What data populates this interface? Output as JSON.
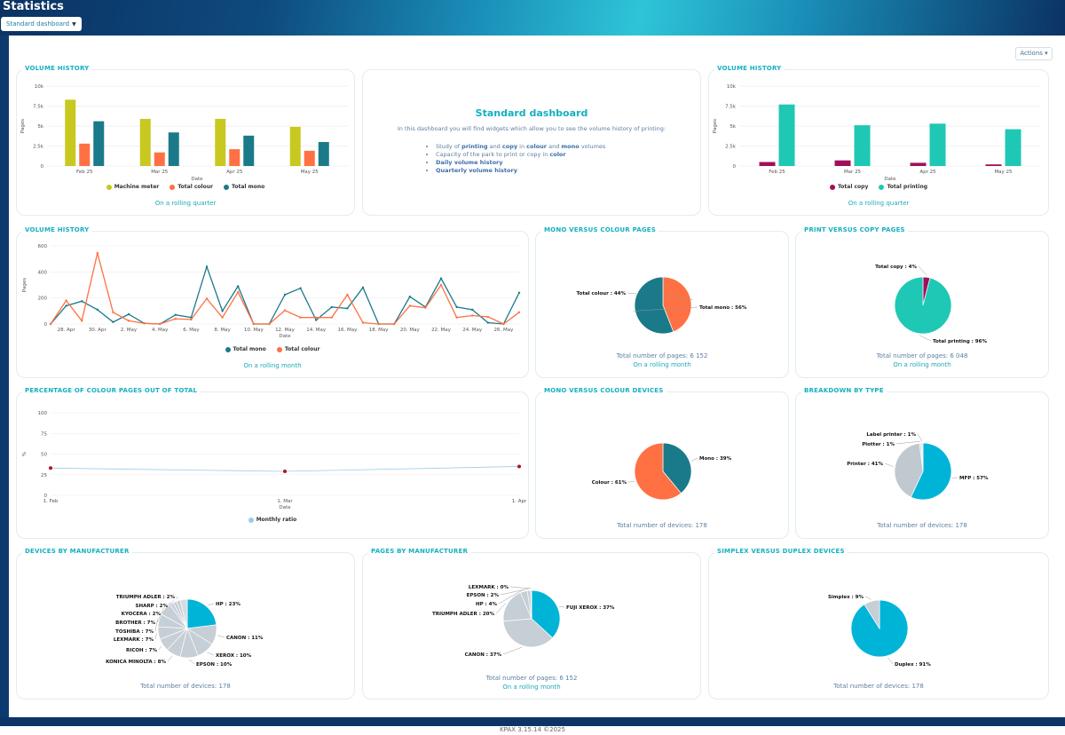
{
  "header": {
    "title": "Statistics",
    "dashboard_select": "Standard dashboard",
    "actions": "Actions"
  },
  "footer": {
    "version": "KPAX 3.15.14 ©2025"
  },
  "intro": {
    "title": "Standard dashboard",
    "text": "In this dashboard you will find widgets which allow you to see the volume history of printing:",
    "items": [
      {
        "pre": "Study of ",
        "b1": "printing",
        "mid": " and ",
        "b2": "copy",
        "mid2": " in ",
        "b3": "colour",
        "mid3": " and ",
        "b4": "mono",
        "post": " volumes"
      },
      {
        "pre": "Capacity of the park to print or copy in ",
        "b1": "color"
      },
      {
        "b1": "Daily volume history"
      },
      {
        "b1": "Quarterly volume history"
      }
    ]
  },
  "cards": {
    "vh1": {
      "title": "VOLUME HISTORY",
      "foot": "On a rolling quarter"
    },
    "vh2": {
      "title": "VOLUME HISTORY",
      "foot": "On a rolling quarter"
    },
    "vh3": {
      "title": "VOLUME HISTORY",
      "foot": "On a rolling month"
    },
    "mvc_pages": {
      "title": "MONO VERSUS COLOUR PAGES",
      "total": "Total number of pages: 6 152",
      "foot": "On a rolling month"
    },
    "pvc_pages": {
      "title": "PRINT VERSUS COPY PAGES",
      "total": "Total number of pages: 6 048",
      "foot": "On a rolling month"
    },
    "pct": {
      "title": "PERCENTAGE OF COLOUR PAGES OUT OF TOTAL"
    },
    "mvc_devices": {
      "title": "MONO VERSUS COLOUR DEVICES",
      "total": "Total number of devices: 178"
    },
    "breakdown": {
      "title": "BREAKDOWN BY TYPE",
      "total": "Total number of devices: 178"
    },
    "dev_manu": {
      "title": "DEVICES BY MANUFACTURER",
      "total": "Total number of devices: 178"
    },
    "pages_manu": {
      "title": "PAGES BY MANUFACTURER",
      "total": "Total number of pages: 6 152",
      "foot": "On a rolling month"
    },
    "simplex": {
      "title": "SIMPLEX VERSUS DUPLEX DEVICES",
      "total": "Total number of devices: 178"
    }
  },
  "chart_data": [
    {
      "id": "vh1",
      "type": "bar",
      "title": "VOLUME HISTORY",
      "categories": [
        "Feb 25",
        "Mar 25",
        "Apr 25",
        "May 25"
      ],
      "series": [
        {
          "name": "Machine meter",
          "color": "#c8c820",
          "values": [
            8300,
            5900,
            5900,
            4900
          ]
        },
        {
          "name": "Total colour",
          "color": "#ff7043",
          "values": [
            2800,
            1700,
            2100,
            1900
          ]
        },
        {
          "name": "Total mono",
          "color": "#1a7a8a",
          "values": [
            5600,
            4200,
            3800,
            3000
          ]
        }
      ],
      "yticks": [
        "0",
        "2.5k",
        "5k",
        "7.5k",
        "10k"
      ],
      "ylim": [
        0,
        10000
      ],
      "xlabel": "Date",
      "ylabel": "Pages"
    },
    {
      "id": "vh2",
      "type": "bar",
      "title": "VOLUME HISTORY",
      "categories": [
        "Feb 25",
        "Mar 25",
        "Apr 25",
        "May 25"
      ],
      "series": [
        {
          "name": "Total copy",
          "color": "#a0105a",
          "values": [
            500,
            700,
            400,
            200
          ]
        },
        {
          "name": "Total printing",
          "color": "#1ec8b4",
          "values": [
            7700,
            5100,
            5300,
            4600
          ]
        }
      ],
      "yticks": [
        "0",
        "2.5k",
        "5k",
        "7.5k",
        "10k"
      ],
      "ylim": [
        0,
        10000
      ],
      "xlabel": "Date",
      "ylabel": "Pages"
    },
    {
      "id": "vh3",
      "type": "line",
      "title": "VOLUME HISTORY",
      "xticks": [
        "28. Apr",
        "30. Apr",
        "2. May",
        "4. May",
        "6. May",
        "8. May",
        "10. May",
        "12. May",
        "14. May",
        "16. May",
        "18. May",
        "20. May",
        "22. May",
        "24. May",
        "26. May"
      ],
      "series": [
        {
          "name": "Total mono",
          "color": "#1a7a8a",
          "values": [
            0,
            140,
            175,
            110,
            15,
            75,
            5,
            0,
            70,
            50,
            440,
            100,
            290,
            0,
            0,
            225,
            275,
            30,
            130,
            120,
            280,
            0,
            0,
            210,
            130,
            350,
            130,
            110,
            10,
            0,
            240
          ]
        },
        {
          "name": "Total colour",
          "color": "#ff7043",
          "values": [
            0,
            180,
            25,
            545,
            90,
            25,
            5,
            0,
            40,
            35,
            195,
            50,
            245,
            0,
            0,
            105,
            50,
            50,
            50,
            225,
            10,
            0,
            0,
            140,
            125,
            300,
            50,
            65,
            55,
            0,
            90
          ]
        }
      ],
      "yticks": [
        "0",
        "200",
        "400",
        "600"
      ],
      "ylim": [
        0,
        600
      ],
      "xlabel": "Date",
      "ylabel": "Pages"
    },
    {
      "id": "mvc_pages",
      "type": "pie",
      "slices": [
        {
          "label": "Total colour : 44%",
          "value": 44,
          "color": "#ff7043"
        },
        {
          "label": "Total mono : 56%",
          "value": 56,
          "color": "#1a7a8a"
        }
      ]
    },
    {
      "id": "pvc_pages",
      "type": "pie",
      "slices": [
        {
          "label": "Total copy : 4%",
          "value": 4,
          "color": "#a0105a"
        },
        {
          "label": "Total printing : 96%",
          "value": 96,
          "color": "#1ec8b4"
        }
      ]
    },
    {
      "id": "pct",
      "type": "line",
      "title": "PERCENTAGE OF COLOUR PAGES OUT OF TOTAL",
      "xticks": [
        "1. Feb",
        "1. Mar",
        "1. Apr"
      ],
      "series": [
        {
          "name": "Monthly ratio",
          "color": "#9ccbea",
          "values": [
            33,
            29,
            35
          ]
        }
      ],
      "yticks": [
        "0",
        "25",
        "50",
        "75",
        "100"
      ],
      "ylim": [
        0,
        100
      ],
      "xlabel": "Date",
      "ylabel": "%"
    },
    {
      "id": "mvc_devices",
      "type": "pie",
      "slices": [
        {
          "label": "Mono : 39%",
          "value": 39,
          "color": "#1a7a8a"
        },
        {
          "label": "Colour : 61%",
          "value": 61,
          "color": "#ff7043"
        }
      ]
    },
    {
      "id": "breakdown",
      "type": "pie",
      "slices": [
        {
          "label": "MFP : 57%",
          "value": 57,
          "color": "#00b4d8"
        },
        {
          "label": "Printer : 41%",
          "value": 41,
          "color": "#c0c8d0"
        },
        {
          "label": "Plotter : 1%",
          "value": 1,
          "color": "#d4dae0"
        },
        {
          "label": "Label printer : 1%",
          "value": 1,
          "color": "#e2e6ea"
        }
      ]
    },
    {
      "id": "dev_manu",
      "type": "pie",
      "slices": [
        {
          "label": "HP : 23%",
          "value": 23,
          "color": "#00b4d8"
        },
        {
          "label": "CANON : 11%",
          "value": 11,
          "color": "#c6ced6"
        },
        {
          "label": "XEROX : 10%",
          "value": 10,
          "color": "#c6ced6"
        },
        {
          "label": "EPSON : 10%",
          "value": 10,
          "color": "#c6ced6"
        },
        {
          "label": "KONICA MINOLTA : 8%",
          "value": 8,
          "color": "#c6ced6"
        },
        {
          "label": "RICOH : 7%",
          "value": 7,
          "color": "#c6ced6"
        },
        {
          "label": "LEXMARK : 7%",
          "value": 7,
          "color": "#c6ced6"
        },
        {
          "label": "TOSHIBA : 7%",
          "value": 7,
          "color": "#c6ced6"
        },
        {
          "label": "BROTHER : 7%",
          "value": 7,
          "color": "#c6ced6"
        },
        {
          "label": "KYOCERA : 2%",
          "value": 2,
          "color": "#c6ced6"
        },
        {
          "label": "SHARP : 2%",
          "value": 2,
          "color": "#c6ced6"
        },
        {
          "label": "TRIUMPH ADLER : 2%",
          "value": 2,
          "color": "#c6ced6"
        },
        {
          "label": "",
          "value": 4,
          "color": "#d6dce2"
        }
      ]
    },
    {
      "id": "pages_manu",
      "type": "pie",
      "slices": [
        {
          "label": "FUJI XEROX : 37%",
          "value": 37,
          "color": "#00b4d8"
        },
        {
          "label": "CANON : 37%",
          "value": 37,
          "color": "#c6ced6"
        },
        {
          "label": "TRIUMPH ADLER : 20%",
          "value": 20,
          "color": "#c6ced6"
        },
        {
          "label": "HP : 4%",
          "value": 4,
          "color": "#c6ced6"
        },
        {
          "label": "EPSON : 2%",
          "value": 2,
          "color": "#c6ced6"
        },
        {
          "label": "LEXMARK : 0%",
          "value": 0.5,
          "color": "#c6ced6"
        }
      ]
    },
    {
      "id": "simplex",
      "type": "pie",
      "slices": [
        {
          "label": "Duplex : 91%",
          "value": 91,
          "color": "#00b4d8"
        },
        {
          "label": "Simplex : 9%",
          "value": 9,
          "color": "#c6ced6"
        }
      ]
    }
  ]
}
